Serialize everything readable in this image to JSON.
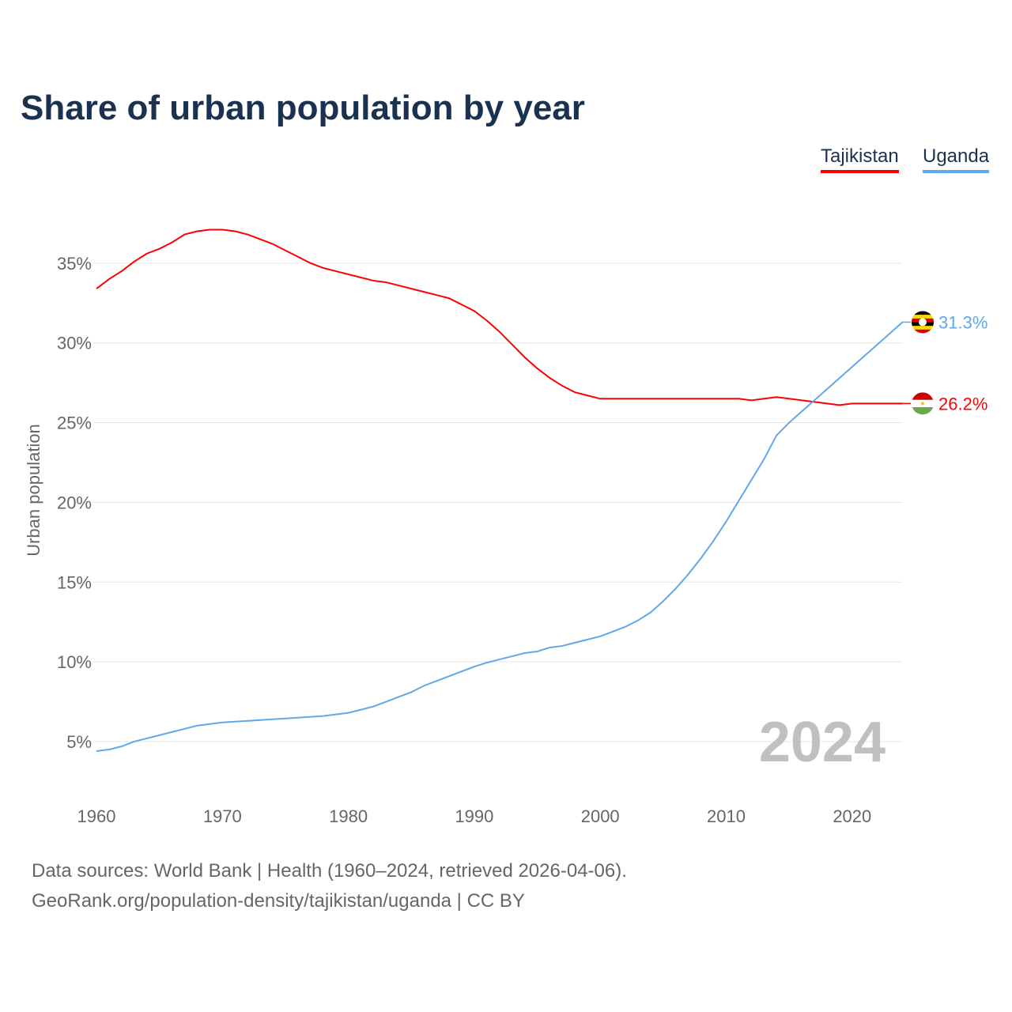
{
  "title": "Share of urban population by year",
  "legend": [
    {
      "name": "Tajikistan",
      "color": "#ff0000"
    },
    {
      "name": "Uganda",
      "color": "#5fa8ea"
    }
  ],
  "footer": {
    "line1": "Data sources: World Bank | Health (1960–2024, retrieved 2026-04-06).",
    "line2": "GeoRank.org/population-density/tajikistan/uganda | CC BY"
  },
  "chart_data": {
    "type": "line",
    "title": "Share of urban population by year",
    "xlabel": "",
    "ylabel": "Urban population",
    "xlim": [
      1960,
      2024
    ],
    "ylim": [
      0,
      40
    ],
    "xticks": [
      1960,
      1970,
      1980,
      1990,
      2000,
      2010,
      2020
    ],
    "yticks": [
      5,
      10,
      15,
      20,
      25,
      30,
      35
    ],
    "ytick_labels": [
      "5%",
      "10%",
      "15%",
      "20%",
      "25%",
      "30%",
      "35%"
    ],
    "grid": true,
    "year_label": "2024",
    "x_start": 1960,
    "series": [
      {
        "name": "Tajikistan",
        "color": "#ff0000",
        "end_label": "26.2%",
        "flag": "tajikistan-flag",
        "values": [
          33.4,
          34.0,
          34.5,
          35.1,
          35.6,
          35.9,
          36.3,
          36.8,
          37.0,
          37.1,
          37.1,
          37.0,
          36.8,
          36.5,
          36.2,
          35.8,
          35.4,
          35.0,
          34.7,
          34.5,
          34.3,
          34.1,
          33.9,
          33.8,
          33.6,
          33.4,
          33.2,
          33.0,
          32.8,
          32.4,
          32.0,
          31.4,
          30.7,
          29.9,
          29.1,
          28.4,
          27.8,
          27.3,
          26.9,
          26.7,
          26.5,
          26.5,
          26.5,
          26.5,
          26.5,
          26.5,
          26.5,
          26.5,
          26.5,
          26.5,
          26.5,
          26.5,
          26.4,
          26.5,
          26.6,
          26.5,
          26.4,
          26.3,
          26.2,
          26.1,
          26.2,
          26.2,
          26.2,
          26.2,
          26.2
        ]
      },
      {
        "name": "Uganda",
        "color": "#5fa8ea",
        "end_label": "31.3%",
        "flag": "uganda-flag",
        "values": [
          4.4,
          4.5,
          4.7,
          5.0,
          5.2,
          5.4,
          5.6,
          5.8,
          6.0,
          6.1,
          6.2,
          6.25,
          6.3,
          6.35,
          6.4,
          6.45,
          6.5,
          6.55,
          6.6,
          6.7,
          6.8,
          7.0,
          7.2,
          7.5,
          7.8,
          8.1,
          8.5,
          8.8,
          9.1,
          9.4,
          9.7,
          9.95,
          10.15,
          10.35,
          10.55,
          10.65,
          10.9,
          11.0,
          11.2,
          11.4,
          11.6,
          11.9,
          12.2,
          12.6,
          13.1,
          13.8,
          14.6,
          15.5,
          16.5,
          17.6,
          18.8,
          20.1,
          21.4,
          22.7,
          24.2,
          25.0,
          25.7,
          26.4,
          27.1,
          27.8,
          28.5,
          29.2,
          29.9,
          30.6,
          31.3
        ]
      }
    ]
  }
}
